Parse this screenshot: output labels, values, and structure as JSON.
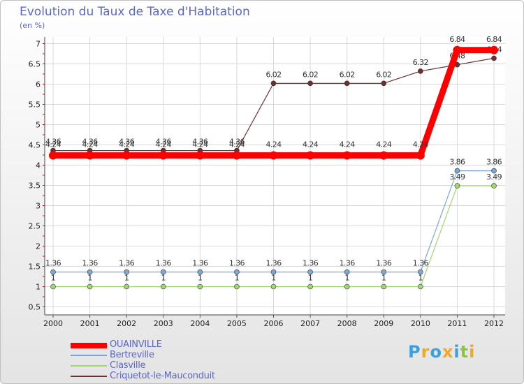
{
  "chart_data": {
    "type": "line",
    "title": "Evolution du Taux de Taxe d'Habitation",
    "subtitle": "(en %)",
    "xlabel": "",
    "ylabel": "(en %)",
    "ylim": [
      0.5,
      7
    ],
    "yticks": [
      "0.5",
      "1",
      "1.5",
      "2",
      "2.5",
      "3",
      "3.5",
      "4",
      "4.5",
      "5",
      "5.5",
      "6",
      "6.5",
      "7"
    ],
    "categories": [
      "2000",
      "2001",
      "2002",
      "2003",
      "2004",
      "2005",
      "2006",
      "2007",
      "2008",
      "2009",
      "2010",
      "2011",
      "2012"
    ],
    "series": [
      {
        "name": "Criquetot-le-Mauconduit",
        "color": "#6e2f2f",
        "values": [
          4.36,
          4.36,
          4.36,
          4.36,
          4.36,
          4.36,
          6.02,
          6.02,
          6.02,
          6.02,
          6.32,
          6.48,
          6.64
        ],
        "labels": [
          "4.36",
          "4.36",
          "4.36",
          "4.36",
          "4.36",
          "4.36",
          "6.02",
          "6.02",
          "6.02",
          "6.02",
          "6.32",
          "6.48",
          "6.64"
        ]
      },
      {
        "name": "Bertreville",
        "color": "#7aa7d6",
        "values": [
          1.36,
          1.36,
          1.36,
          1.36,
          1.36,
          1.36,
          1.36,
          1.36,
          1.36,
          1.36,
          1.36,
          3.86,
          3.86
        ],
        "labels": [
          "1.36",
          "1.36",
          "1.36",
          "1.36",
          "1.36",
          "1.36",
          "1.36",
          "1.36",
          "1.36",
          "1.36",
          "1.36",
          "3.86",
          "3.86"
        ]
      },
      {
        "name": "Clasville",
        "color": "#9ed86e",
        "values": [
          1,
          1,
          1,
          1,
          1,
          1,
          1,
          1,
          1,
          1,
          1,
          3.49,
          3.49
        ],
        "labels": [
          "1",
          "1",
          "1",
          "1",
          "1",
          "1",
          "1",
          "1",
          "1",
          "1",
          "1",
          "3.49",
          "3.49"
        ]
      },
      {
        "name": "OUAINVILLE",
        "color": "#ff0000",
        "values": [
          4.24,
          4.24,
          4.24,
          4.24,
          4.24,
          4.24,
          4.24,
          4.24,
          4.24,
          4.24,
          4.24,
          6.84,
          6.84
        ],
        "labels": [
          "4.24",
          "4.24",
          "4.24",
          "4.24",
          "4.24",
          "4.24",
          "4.24",
          "4.24",
          "4.24",
          "4.24",
          "4.24",
          "6.84",
          "6.84"
        ]
      }
    ]
  },
  "legend": [
    {
      "name": "OUAINVILLE",
      "color": "#ff0000"
    },
    {
      "name": "Bertreville",
      "color": "#7aa7d6"
    },
    {
      "name": "Clasville",
      "color": "#9ed86e"
    },
    {
      "name": "Criquetot-le-Mauconduit",
      "color": "#6e2f2f"
    }
  ],
  "logo": {
    "text": "Proxiti",
    "letters": [
      {
        "ch": "P",
        "color": "#3aa0e0"
      },
      {
        "ch": "r",
        "color": "#f5a623"
      },
      {
        "ch": "o",
        "color": "#3aa0e0"
      },
      {
        "ch": "x",
        "color": "#f5a623"
      },
      {
        "ch": "i",
        "color": "#3aa0e0"
      },
      {
        "ch": "t",
        "color": "#8cc63f"
      },
      {
        "ch": "i",
        "color": "#f5a623"
      }
    ]
  }
}
